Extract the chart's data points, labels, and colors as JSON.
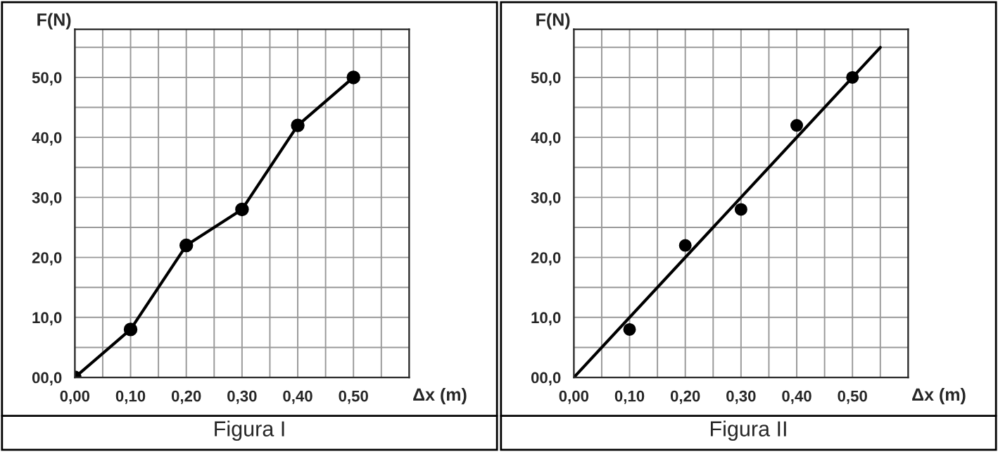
{
  "chart_data": [
    {
      "type": "line",
      "title": "Figura I",
      "xlabel": "Δx (m)",
      "ylabel": "F(N)",
      "marker": "circle",
      "grid": true,
      "x": [
        0,
        0.1,
        0.2,
        0.3,
        0.4,
        0.5
      ],
      "series": [
        {
          "color": "#000000",
          "values": [
            0,
            8,
            22,
            28,
            42,
            50
          ]
        }
      ],
      "xlim": [
        0,
        0.6
      ],
      "ylim": [
        0,
        58
      ],
      "xticks": [
        {
          "value": 0,
          "label": "0,00"
        },
        {
          "value": 0.05,
          "label": null
        },
        {
          "value": 0.1,
          "label": "0,10"
        },
        {
          "value": 0.15,
          "label": null
        },
        {
          "value": 0.2,
          "label": "0,20"
        },
        {
          "value": 0.25,
          "label": null
        },
        {
          "value": 0.3,
          "label": "0,30"
        },
        {
          "value": 0.35,
          "label": null
        },
        {
          "value": 0.4,
          "label": "0,40"
        },
        {
          "value": 0.45,
          "label": null
        },
        {
          "value": 0.5,
          "label": "0,50"
        },
        {
          "value": 0.55,
          "label": null
        },
        {
          "value": 0.6,
          "label": null
        }
      ],
      "yticks": [
        {
          "value": 0,
          "label": "00,0"
        },
        {
          "value": 5,
          "label": null
        },
        {
          "value": 10,
          "label": "10,0"
        },
        {
          "value": 15,
          "label": null
        },
        {
          "value": 20,
          "label": "20,0"
        },
        {
          "value": 25,
          "label": null
        },
        {
          "value": 30,
          "label": "30,0"
        },
        {
          "value": 35,
          "label": null
        },
        {
          "value": 40,
          "label": "40,0"
        },
        {
          "value": 45,
          "label": null
        },
        {
          "value": 50,
          "label": "50,0"
        },
        {
          "value": 55,
          "label": null
        }
      ]
    },
    {
      "type": "scatter",
      "title": "Figura II",
      "xlabel": "Δx (m)",
      "ylabel": "F(N)",
      "grid": true,
      "x": [
        0.1,
        0.2,
        0.3,
        0.4,
        0.5
      ],
      "series": [
        {
          "type": "scatter",
          "color": "#000000",
          "marker": "circle",
          "values": [
            8,
            22,
            28,
            42,
            50
          ]
        },
        {
          "type": "line",
          "color": "#000000",
          "marker": "none",
          "x": [
            0,
            0.55
          ],
          "values": [
            0,
            55
          ]
        }
      ],
      "xlim": [
        0,
        0.6
      ],
      "ylim": [
        0,
        58
      ],
      "xticks": [
        {
          "value": 0,
          "label": "0,00"
        },
        {
          "value": 0.05,
          "label": null
        },
        {
          "value": 0.1,
          "label": "0,10"
        },
        {
          "value": 0.15,
          "label": null
        },
        {
          "value": 0.2,
          "label": "0,20"
        },
        {
          "value": 0.25,
          "label": null
        },
        {
          "value": 0.3,
          "label": "0,30"
        },
        {
          "value": 0.35,
          "label": null
        },
        {
          "value": 0.4,
          "label": "0,40"
        },
        {
          "value": 0.45,
          "label": null
        },
        {
          "value": 0.5,
          "label": "0,50"
        },
        {
          "value": 0.55,
          "label": null
        },
        {
          "value": 0.6,
          "label": null
        }
      ],
      "yticks": [
        {
          "value": 0,
          "label": "00,0"
        },
        {
          "value": 5,
          "label": null
        },
        {
          "value": 10,
          "label": "10,0"
        },
        {
          "value": 15,
          "label": null
        },
        {
          "value": 20,
          "label": "20,0"
        },
        {
          "value": 25,
          "label": null
        },
        {
          "value": 30,
          "label": "30,0"
        },
        {
          "value": 35,
          "label": null
        },
        {
          "value": 40,
          "label": "40,0"
        },
        {
          "value": 45,
          "label": null
        },
        {
          "value": 50,
          "label": "50,0"
        },
        {
          "value": 55,
          "label": null
        }
      ]
    }
  ]
}
